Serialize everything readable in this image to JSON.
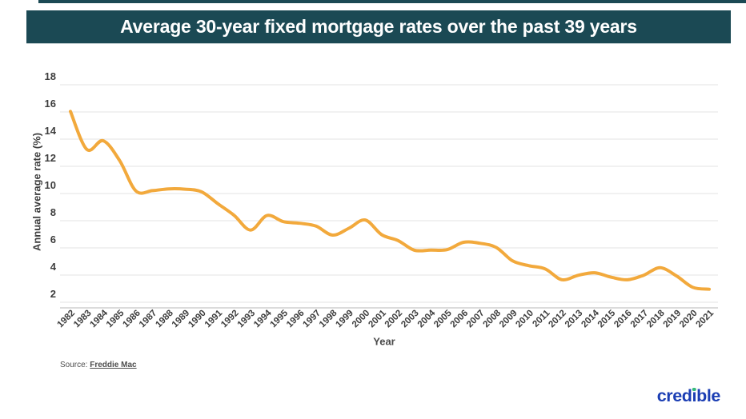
{
  "header": {
    "title": "Average 30-year fixed mortgage rates over the past 39 years",
    "banner_color": "#1b4954"
  },
  "chart_data": {
    "type": "line",
    "title": "Average 30-year fixed mortgage rates over the past 39 years",
    "xlabel": "Year",
    "ylabel": "Annual average rate (%)",
    "x": [
      1982,
      1983,
      1984,
      1985,
      1986,
      1987,
      1988,
      1989,
      1990,
      1991,
      1992,
      1993,
      1994,
      1995,
      1996,
      1997,
      1998,
      1999,
      2000,
      2001,
      2002,
      2003,
      2004,
      2005,
      2006,
      2007,
      2008,
      2009,
      2010,
      2011,
      2012,
      2013,
      2014,
      2015,
      2016,
      2017,
      2018,
      2019,
      2020,
      2021
    ],
    "series": [
      {
        "name": "30-year fixed mortgage annual average rate",
        "values": [
          16.04,
          13.24,
          13.88,
          12.43,
          10.19,
          10.21,
          10.34,
          10.32,
          10.13,
          9.25,
          8.39,
          7.31,
          8.38,
          7.93,
          7.81,
          7.6,
          6.94,
          7.44,
          8.05,
          6.97,
          6.54,
          5.83,
          5.84,
          5.87,
          6.41,
          6.34,
          6.03,
          5.04,
          4.69,
          4.45,
          3.66,
          3.98,
          4.17,
          3.85,
          3.65,
          3.99,
          4.54,
          3.94,
          3.1,
          2.96
        ]
      }
    ],
    "yticks": [
      2,
      4,
      6,
      8,
      10,
      12,
      14,
      16,
      18
    ],
    "ylim": [
      2,
      18
    ],
    "grid": true,
    "legend_position": "none",
    "line_color": "#f2a93c",
    "grid_color": "#e3e3e3",
    "axis_color": "#cfcfcf",
    "tick_color": "#3d3d3d"
  },
  "footer": {
    "source_label": "Source:",
    "source_link": "Freddie Mac",
    "logo_text": "credible",
    "logo_color": "#1b3eb4",
    "logo_dot_color": "#35b97c"
  }
}
